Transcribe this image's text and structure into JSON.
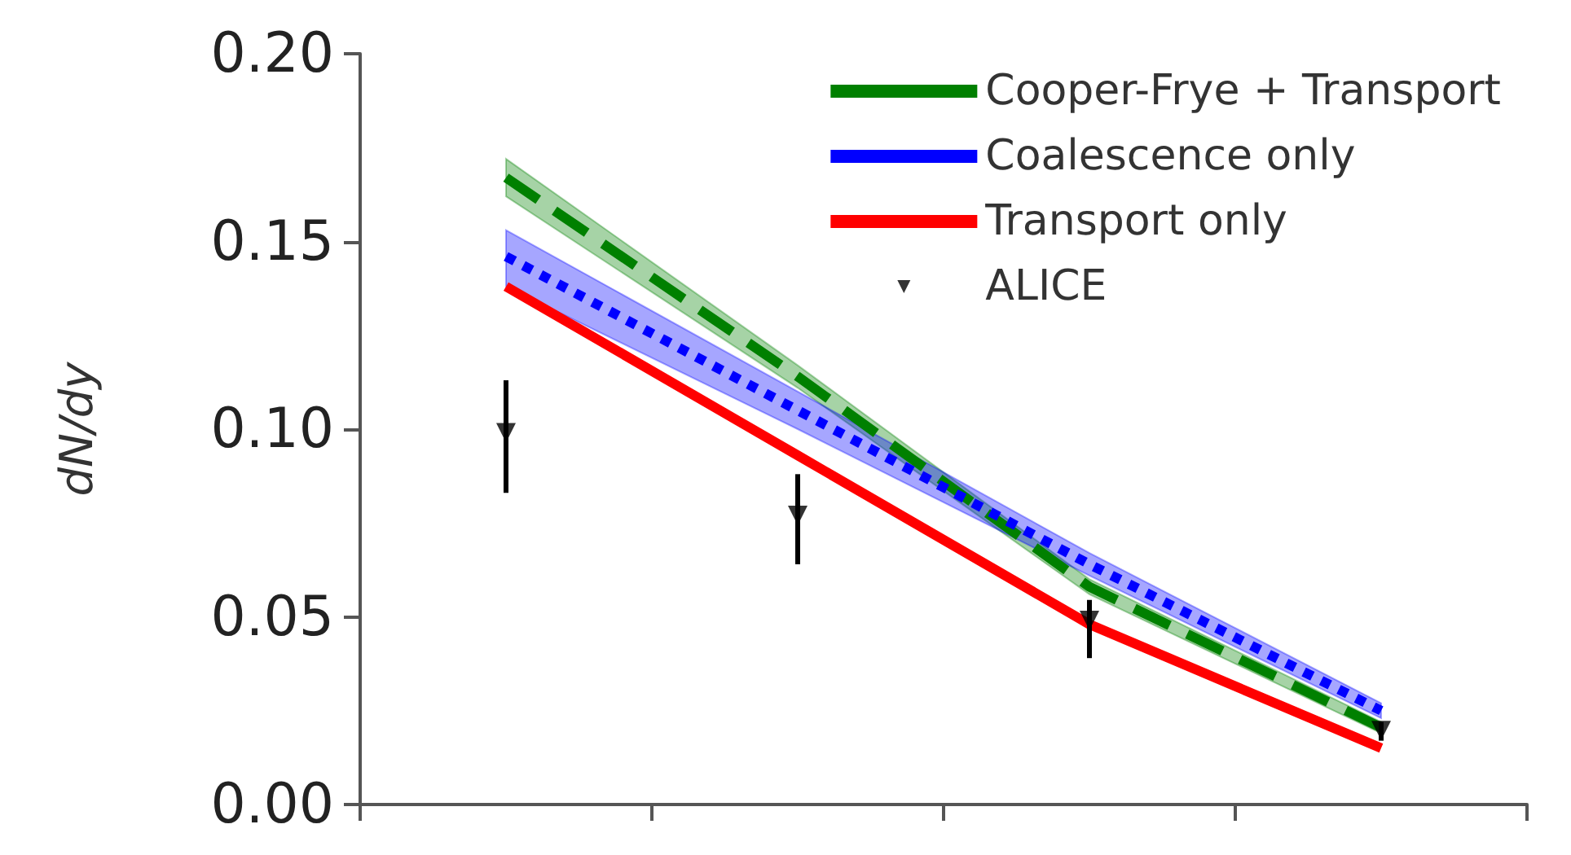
{
  "chart_data": {
    "type": "line",
    "ylabel": "dN/dy",
    "categories": [
      null,
      null,
      null,
      null
    ],
    "ylim": [
      0,
      0.2
    ],
    "yticks": [
      {
        "value": 0,
        "label": "0.00"
      },
      {
        "value": 0.05,
        "label": "0.05"
      },
      {
        "value": 0.1,
        "label": "0.10"
      },
      {
        "value": 0.15,
        "label": "0.15"
      },
      {
        "value": 0.2,
        "label": "0.20"
      }
    ],
    "tick_labels": "y",
    "grid": false,
    "legend": "top right",
    "series": [
      {
        "name": "Cooper-Frye + Transport",
        "color": "#008000",
        "line_style": "dashed",
        "values": [
          0.167,
          0.114,
          0.058,
          0.0205
        ],
        "lower": [
          0.162,
          0.111,
          0.056,
          0.019
        ],
        "upper": [
          0.172,
          0.117,
          0.06,
          0.022
        ]
      },
      {
        "name": "Coalescence only",
        "color": "#0000ff",
        "line_style": "dotted",
        "values": [
          0.146,
          0.105,
          0.064,
          0.025
        ],
        "lower": [
          0.138,
          0.1,
          0.061,
          0.023
        ],
        "upper": [
          0.153,
          0.11,
          0.067,
          0.027
        ]
      },
      {
        "name": "Transport only",
        "color": "#ff0000",
        "line_style": "solid",
        "values": [
          0.138,
          0.093,
          0.048,
          0.015
        ]
      },
      {
        "name": "ALICE",
        "type": "scatter",
        "marker": "triangle",
        "color": "#000000",
        "values": [
          0.099,
          0.077,
          0.049,
          0.0197
        ],
        "errors": [
          [
            0.083,
            0.113
          ],
          [
            0.064,
            0.088
          ],
          [
            0.039,
            0.0545
          ],
          [
            0.017,
            0.022
          ]
        ]
      }
    ]
  }
}
